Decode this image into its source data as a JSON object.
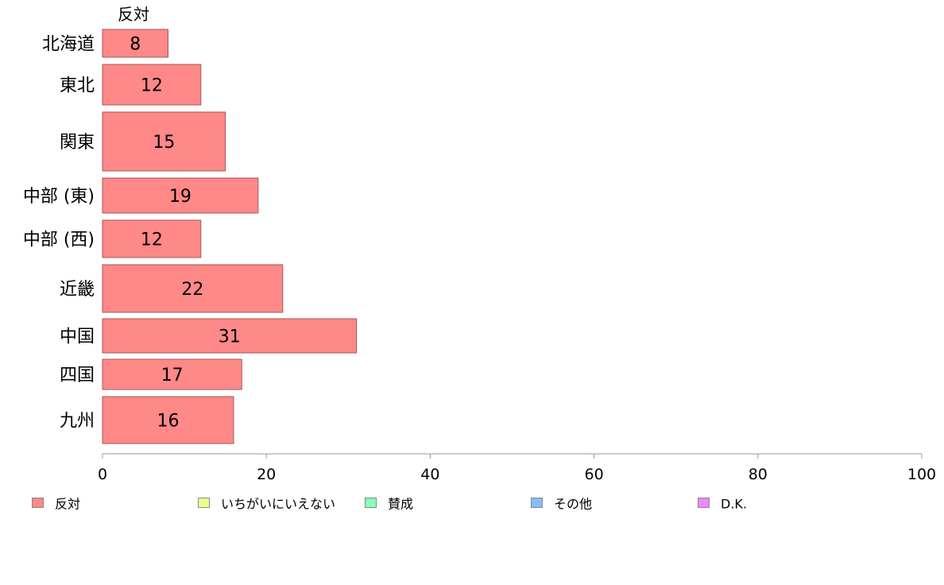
{
  "chart_data": {
    "type": "bar",
    "orientation": "horizontal",
    "column_header": "反対",
    "categories": [
      "北海道",
      "東北",
      "関東",
      "中部 (東)",
      "中部 (西)",
      "近畿",
      "中国",
      "四国",
      "九州"
    ],
    "series": [
      {
        "name": "反対",
        "color": "#ff8888",
        "values": [
          8,
          12,
          15,
          19,
          12,
          22,
          31,
          17,
          16
        ]
      }
    ],
    "xlim": [
      0,
      100
    ],
    "xticks": [
      0,
      20,
      40,
      60,
      80,
      100
    ],
    "grid": false,
    "legend": {
      "position": "bottom",
      "items": [
        {
          "label": "反対",
          "color": "#ff8888"
        },
        {
          "label": "いちがいにいえない",
          "color": "#eeff88"
        },
        {
          "label": "賛成",
          "color": "#88ffbb"
        },
        {
          "label": "その他",
          "color": "#88bbff"
        },
        {
          "label": "D.K.",
          "color": "#ee88ff"
        }
      ]
    }
  }
}
